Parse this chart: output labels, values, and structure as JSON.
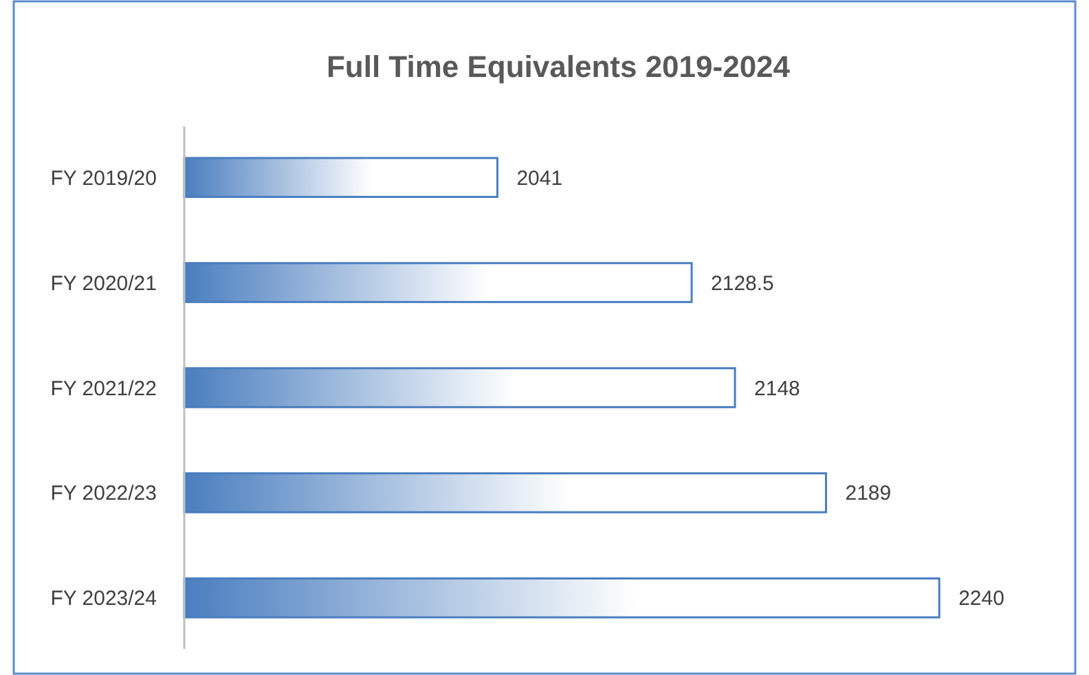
{
  "chart_data": {
    "type": "bar",
    "orientation": "horizontal",
    "title": "Full Time Equivalents 2019-2024",
    "categories": [
      "FY 2019/20",
      "FY 2020/21",
      "FY 2021/22",
      "FY 2022/23",
      "FY 2023/24"
    ],
    "values": [
      2041,
      2128.5,
      2148,
      2189,
      2240
    ],
    "color": "#4a7ebf",
    "xlim": [
      1900,
      2300
    ],
    "data_labels": true
  }
}
